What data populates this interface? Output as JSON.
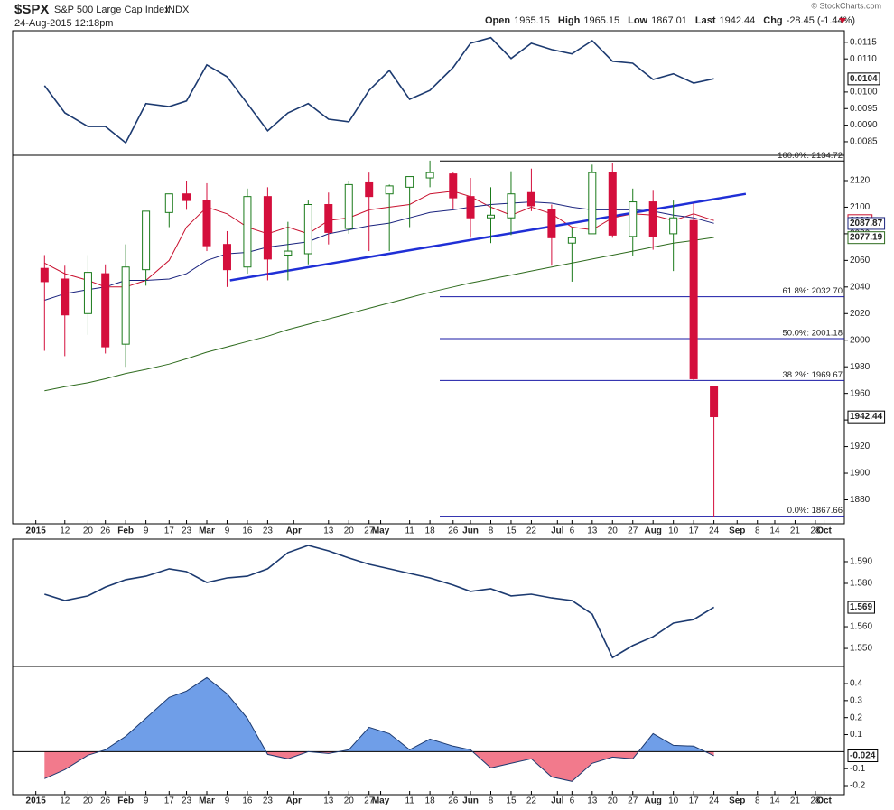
{
  "header": {
    "symbol": "$SPX",
    "name": "S&P 500 Large Cap Index",
    "exchange": "INDX",
    "datetime": "24-Aug-2015 12:18pm",
    "copyright": "© StockCharts.com",
    "stats": [
      {
        "label": "Open",
        "value": 1965.15
      },
      {
        "label": "High",
        "value": 1965.15
      },
      {
        "label": "Low",
        "value": 1867.01
      },
      {
        "label": "Last",
        "value": 1942.44
      },
      {
        "label": "Chg",
        "value": "-28.45 (-1.44%)"
      }
    ]
  },
  "chart_data": [
    {
      "type": "line",
      "color": "#1c3a70",
      "x": [
        "2015-01-05",
        "2015-01-12",
        "2015-01-20",
        "2015-01-26",
        "2015-02-02",
        "2015-02-09",
        "2015-02-17",
        "2015-02-23",
        "2015-03-02",
        "2015-03-09",
        "2015-03-16",
        "2015-03-23",
        "2015-03-30",
        "2015-04-06",
        "2015-04-13",
        "2015-04-20",
        "2015-04-27",
        "2015-05-04",
        "2015-05-11",
        "2015-05-18",
        "2015-05-26",
        "2015-06-01",
        "2015-06-08",
        "2015-06-15",
        "2015-06-22",
        "2015-06-29",
        "2015-07-06",
        "2015-07-13",
        "2015-07-20",
        "2015-07-27",
        "2015-08-03",
        "2015-08-10",
        "2015-08-17",
        "2015-08-24"
      ],
      "values": [
        0.01019,
        0.00937,
        0.00896,
        0.00896,
        0.00847,
        0.00965,
        0.00956,
        0.00973,
        0.01082,
        0.01046,
        0.00965,
        0.00883,
        0.00937,
        0.00965,
        0.00918,
        0.0091,
        0.01005,
        0.01065,
        0.00978,
        0.01005,
        0.01074,
        0.01147,
        0.01164,
        0.01101,
        0.01147,
        0.01128,
        0.01115,
        0.01155,
        0.01093,
        0.01087,
        0.01038,
        0.01055,
        0.01027,
        0.0104
      ],
      "ylim": [
        0.00809,
        0.01185
      ],
      "yticks": [
        0.0085,
        {
          "value": 0.009,
          "label": "0.0090"
        },
        0.0095,
        {
          "value": 0.01,
          "label": "0.0100"
        },
        {
          "value": 0.011,
          "label": "0.0110"
        },
        0.0115
      ]
    },
    {
      "type": "candlestick",
      "x": [
        "2015-01-05",
        "2015-01-12",
        "2015-01-20",
        "2015-01-26",
        "2015-02-02",
        "2015-02-09",
        "2015-02-17",
        "2015-02-23",
        "2015-03-02",
        "2015-03-09",
        "2015-03-16",
        "2015-03-23",
        "2015-03-30",
        "2015-04-06",
        "2015-04-13",
        "2015-04-20",
        "2015-04-27",
        "2015-05-04",
        "2015-05-11",
        "2015-05-18",
        "2015-05-26",
        "2015-06-01",
        "2015-06-08",
        "2015-06-15",
        "2015-06-22",
        "2015-06-29",
        "2015-07-06",
        "2015-07-13",
        "2015-07-20",
        "2015-07-27",
        "2015-08-03",
        "2015-08-10",
        "2015-08-17",
        "2015-08-24"
      ],
      "open": [
        2054,
        2046,
        2020,
        2050,
        1997,
        2053,
        2096,
        2110,
        2105,
        2072,
        2055,
        2108,
        2064,
        2065,
        2102,
        2084,
        2119,
        2110,
        2115,
        2122,
        2125,
        2108,
        2092,
        2092,
        2111,
        2098,
        2073,
        2080,
        2126,
        2078,
        2104,
        2080,
        2090,
        1965.15
      ],
      "high": [
        2064,
        2056,
        2064,
        2057,
        2072,
        2097,
        2110,
        2120,
        2118,
        2082,
        2114,
        2115,
        2089,
        2105,
        2111,
        2120,
        2126,
        2117,
        2123,
        2135,
        2126,
        2122,
        2115,
        2127,
        2129,
        2102,
        2084,
        2132,
        2133,
        2114,
        2113,
        2105,
        2103,
        1965.15
      ],
      "low": [
        1992,
        1988,
        2004,
        1990,
        1980,
        2041,
        2085,
        2098,
        2067,
        2040,
        2050,
        2045,
        2045,
        2057,
        2072,
        2080,
        2067,
        2067,
        2085,
        2115,
        2099,
        2077,
        2073,
        2079,
        2097,
        2056,
        2044,
        2080,
        2077,
        2063,
        2068,
        2052,
        1970,
        1867.01
      ],
      "close": [
        2044,
        2019,
        2051,
        1995,
        2055,
        2097,
        2110,
        2105,
        2071,
        2053,
        2108,
        2061,
        2067,
        2102,
        2081,
        2117,
        2108,
        2116,
        2123,
        2126,
        2107,
        2092,
        2094,
        2110,
        2101,
        2077,
        2077,
        2126,
        2079,
        2104,
        2078,
        2092,
        1971,
        1942.44
      ],
      "up_color": "#1a7a1a",
      "down_color": "#d40f3c",
      "series": [
        {
          "color": "#c8102e",
          "values": [
            2058,
            2050,
            2045,
            2040,
            2040,
            2045,
            2060,
            2085,
            2100,
            2095,
            2085,
            2080,
            2085,
            2080,
            2090,
            2092,
            2098,
            2100,
            2102,
            2110,
            2112,
            2108,
            2100,
            2094,
            2100,
            2095,
            2085,
            2083,
            2092,
            2095,
            2094,
            2090,
            2095,
            2090
          ]
        },
        {
          "color": "#1a237e",
          "values": [
            2030,
            2035,
            2038,
            2040,
            2045,
            2045,
            2046,
            2050,
            2060,
            2065,
            2066,
            2070,
            2072,
            2074,
            2080,
            2083,
            2086,
            2088,
            2092,
            2096,
            2098,
            2100,
            2102,
            2103,
            2104,
            2103,
            2100,
            2098,
            2098,
            2098,
            2097,
            2094,
            2092,
            2087.87
          ]
        },
        {
          "color": "#2e6b1e",
          "values": [
            1962,
            1965,
            1968,
            1971,
            1975,
            1978,
            1982,
            1986,
            1991,
            1995,
            1999,
            2003,
            2008,
            2012,
            2016,
            2020,
            2024,
            2028,
            2032,
            2036,
            2040,
            2043,
            2046,
            2049,
            2052,
            2055,
            2058,
            2061,
            2064,
            2067,
            2070,
            2073,
            2075,
            2077.19
          ]
        }
      ],
      "trendline": {
        "x": [
          "2015-03-10",
          "2015-09-04"
        ],
        "values": [
          2045,
          2110
        ],
        "color": "#1f2fd6"
      },
      "fib_levels": [
        {
          "value": 2134.72,
          "label": "100.0%: 2134.72"
        },
        {
          "value": 2032.7,
          "label": "61.8%: 2032.70"
        },
        {
          "value": 2001.18,
          "label": "50.0%: 2001.18"
        },
        {
          "value": 1969.67,
          "label": "38.2%: 1969.67"
        },
        {
          "value": 1867.66,
          "label": "0.0%: 1867.66"
        }
      ],
      "fib_color": "#1a1aa6",
      "xlim": [
        "2014-12-25",
        "2015-10-08"
      ],
      "ylim": [
        1862,
        2139
      ],
      "yticks": [
        1880,
        1900,
        1920,
        1940,
        1960,
        1980,
        2000,
        2020,
        2040,
        2060,
        2080,
        2100,
        2120
      ],
      "xticks": [
        {
          "value": "2015-01-02",
          "label": "2015"
        },
        {
          "value": "2015-01-12",
          "label": "12"
        },
        {
          "value": "2015-01-20",
          "label": "20"
        },
        {
          "value": "2015-01-26",
          "label": "26"
        },
        {
          "value": "2015-02-02",
          "label": "Feb"
        },
        {
          "value": "2015-02-09",
          "label": "9"
        },
        {
          "value": "2015-02-17",
          "label": "17"
        },
        {
          "value": "2015-02-23",
          "label": "23"
        },
        {
          "value": "2015-03-02",
          "label": "Mar"
        },
        {
          "value": "2015-03-09",
          "label": "9"
        },
        {
          "value": "2015-03-16",
          "label": "16"
        },
        {
          "value": "2015-03-23",
          "label": "23"
        },
        {
          "value": "2015-04-01",
          "label": "Apr"
        },
        {
          "value": "2015-04-13",
          "label": "13"
        },
        {
          "value": "2015-04-20",
          "label": "20"
        },
        {
          "value": "2015-04-27",
          "label": "27"
        },
        {
          "value": "2015-05-01",
          "label": "May"
        },
        {
          "value": "2015-05-11",
          "label": "11"
        },
        {
          "value": "2015-05-18",
          "label": "18"
        },
        {
          "value": "2015-05-26",
          "label": "26"
        },
        {
          "value": "2015-06-01",
          "label": "Jun"
        },
        {
          "value": "2015-06-08",
          "label": "8"
        },
        {
          "value": "2015-06-15",
          "label": "15"
        },
        {
          "value": "2015-06-22",
          "label": "22"
        },
        {
          "value": "2015-07-01",
          "label": "Jul"
        },
        {
          "value": "2015-07-06",
          "label": "6"
        },
        {
          "value": "2015-07-13",
          "label": "13"
        },
        {
          "value": "2015-07-20",
          "label": "20"
        },
        {
          "value": "2015-07-27",
          "label": "27"
        },
        {
          "value": "2015-08-03",
          "label": "Aug"
        },
        {
          "value": "2015-08-10",
          "label": "10"
        },
        {
          "value": "2015-08-17",
          "label": "17"
        },
        {
          "value": "2015-08-24",
          "label": "24"
        },
        {
          "value": "2015-09-01",
          "label": "Sep"
        },
        {
          "value": "2015-09-08",
          "label": "8"
        },
        {
          "value": "2015-09-14",
          "label": "14"
        },
        {
          "value": "2015-09-21",
          "label": "21"
        },
        {
          "value": "2015-09-28",
          "label": "28"
        },
        {
          "value": "2015-10-01",
          "label": "Oct"
        }
      ]
    },
    {
      "type": "line",
      "color": "#1c3a70",
      "x": [
        "2015-01-05",
        "2015-01-12",
        "2015-01-20",
        "2015-01-26",
        "2015-02-02",
        "2015-02-09",
        "2015-02-17",
        "2015-02-23",
        "2015-03-02",
        "2015-03-09",
        "2015-03-16",
        "2015-03-23",
        "2015-03-30",
        "2015-04-06",
        "2015-04-13",
        "2015-04-20",
        "2015-04-27",
        "2015-05-04",
        "2015-05-11",
        "2015-05-18",
        "2015-05-26",
        "2015-06-01",
        "2015-06-08",
        "2015-06-15",
        "2015-06-22",
        "2015-06-29",
        "2015-07-06",
        "2015-07-13",
        "2015-07-20",
        "2015-07-27",
        "2015-08-03",
        "2015-08-10",
        "2015-08-17",
        "2015-08-24"
      ],
      "values": [
        1.575,
        1.5721,
        1.5742,
        1.5783,
        1.5817,
        1.5833,
        1.5867,
        1.5854,
        1.5804,
        1.5825,
        1.5833,
        1.5867,
        1.5942,
        1.5975,
        1.595,
        1.5917,
        1.5888,
        1.5867,
        1.5846,
        1.5825,
        1.5792,
        1.5763,
        1.5775,
        1.5742,
        1.575,
        1.5733,
        1.5721,
        1.5658,
        1.5458,
        1.5513,
        1.5554,
        1.5617,
        1.5633,
        1.569
      ],
      "ylim": [
        1.5417,
        1.6004
      ],
      "yticks": [
        {
          "value": 1.55,
          "label": "1.550"
        },
        {
          "value": 1.56,
          "label": "1.560"
        },
        {
          "value": 1.58,
          "label": "1.580"
        },
        {
          "value": 1.59,
          "label": "1.590"
        }
      ]
    },
    {
      "type": "area",
      "color": "#1c3a70",
      "fill_positive": "#6f9ee8",
      "fill_negative": "#f27a8c",
      "x": [
        "2015-01-05",
        "2015-01-12",
        "2015-01-20",
        "2015-01-26",
        "2015-02-02",
        "2015-02-09",
        "2015-02-17",
        "2015-02-23",
        "2015-03-02",
        "2015-03-09",
        "2015-03-16",
        "2015-03-23",
        "2015-03-30",
        "2015-04-06",
        "2015-04-13",
        "2015-04-20",
        "2015-04-27",
        "2015-05-04",
        "2015-05-11",
        "2015-05-18",
        "2015-05-26",
        "2015-06-01",
        "2015-06-08",
        "2015-06-15",
        "2015-06-22",
        "2015-06-29",
        "2015-07-06",
        "2015-07-13",
        "2015-07-20",
        "2015-07-27",
        "2015-08-03",
        "2015-08-10",
        "2015-08-17",
        "2015-08-24"
      ],
      "values": [
        -0.159,
        -0.106,
        -0.021,
        0.011,
        0.09,
        0.196,
        0.319,
        0.356,
        0.435,
        0.34,
        0.196,
        -0.016,
        -0.042,
        0,
        -0.011,
        0.011,
        0.143,
        0.106,
        0.011,
        0.074,
        0.032,
        0.011,
        -0.096,
        -0.069,
        -0.042,
        -0.149,
        -0.175,
        -0.069,
        -0.032,
        -0.042,
        0.106,
        0.037,
        0.032,
        -0.024
      ],
      "ylim": [
        -0.253,
        0.501
      ],
      "yticks": [
        -0.2,
        -0.1,
        0.1,
        0.2,
        0.3,
        0.4
      ]
    }
  ]
}
